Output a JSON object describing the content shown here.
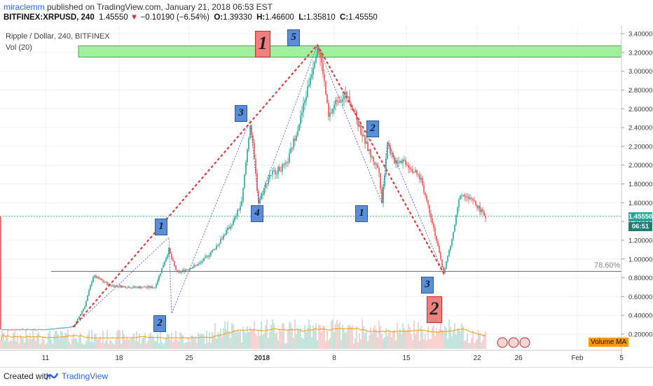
{
  "header": {
    "user": "miraclemm",
    "published": " published on TradingView.com, January 21, 2018 06:53 EST",
    "symbol": "BITFINEX:XRPUSD, 240",
    "last": "1.45550",
    "change_arrow": "▼",
    "change": "−0.10190 (−6.54%)",
    "o_label": "O:",
    "o": "1.39330",
    "h_label": "H:",
    "h": "1.46600",
    "l_label": "L:",
    "l": "1.35810",
    "c_label": "C:",
    "c": "1.45550"
  },
  "chart_title": "Ripple / Dollar, 240, BITFINEX",
  "vol_label": "Vol (20)",
  "price_tag": {
    "price": "1.45550",
    "time": "06:51"
  },
  "fib_label": "78.60%",
  "volume_ma_label": "Volume MA",
  "wave_labels": [
    {
      "text": "1"
    },
    {
      "text": "2"
    },
    {
      "text": "3"
    },
    {
      "text": "4"
    },
    {
      "text": "5"
    },
    {
      "text": "1"
    },
    {
      "text": "2"
    },
    {
      "text": "3"
    },
    {
      "text": "1"
    },
    {
      "text": "2"
    }
  ],
  "footer": {
    "created": "Created with",
    "brand": "TradingView"
  },
  "colors": {
    "up": "#26a69a",
    "down": "#ef5350",
    "zone": "#90ee90",
    "wave_box": "#5b8ed6",
    "big_box": "#f08080",
    "trend_dots": "#e53935"
  },
  "chart_data": {
    "type": "candlestick",
    "y_ticks": [
      "3.40000",
      "3.20000",
      "3.00000",
      "2.80000",
      "2.60000",
      "2.40000",
      "2.20000",
      "2.00000",
      "1.80000",
      "1.60000",
      "1.40000",
      "1.20000",
      "1.00000",
      "0.80000",
      "0.60000",
      "0.40000",
      "0.20000"
    ],
    "x_ticks": [
      "11",
      "18",
      "25",
      "2018",
      "8",
      "15",
      "22",
      "26",
      "Feb",
      "5"
    ],
    "ylim": [
      0.0,
      3.45
    ],
    "zone": [
      3.15,
      3.27
    ],
    "fib_level": 0.868,
    "last_price": 1.4555,
    "path": [
      [
        0,
        0.25
      ],
      [
        10,
        0.28
      ],
      [
        14,
        0.5
      ],
      [
        17,
        0.82
      ],
      [
        23,
        0.72
      ],
      [
        31,
        0.7
      ],
      [
        39,
        0.7
      ],
      [
        44,
        1.1
      ],
      [
        45,
        1.0
      ],
      [
        47,
        0.85
      ],
      [
        55,
        0.95
      ],
      [
        60,
        1.1
      ],
      [
        67,
        1.4
      ],
      [
        70,
        1.6
      ],
      [
        73,
        2.45
      ],
      [
        74,
        2.2
      ],
      [
        76,
        1.6
      ],
      [
        80,
        1.9
      ],
      [
        86,
        2.0
      ],
      [
        91,
        2.5
      ],
      [
        95,
        3.0
      ],
      [
        97,
        3.28
      ],
      [
        99,
        3.0
      ],
      [
        101,
        2.5
      ],
      [
        104,
        2.7
      ],
      [
        108,
        2.75
      ],
      [
        112,
        2.4
      ],
      [
        116,
        2.1
      ],
      [
        119,
        1.95
      ],
      [
        120,
        1.6
      ],
      [
        122,
        2.25
      ],
      [
        124,
        2.05
      ],
      [
        128,
        2.05
      ],
      [
        134,
        1.85
      ],
      [
        138,
        1.4
      ],
      [
        142,
        0.85
      ],
      [
        145,
        1.2
      ],
      [
        148,
        1.7
      ],
      [
        153,
        1.6
      ],
      [
        157,
        1.45
      ]
    ]
  }
}
